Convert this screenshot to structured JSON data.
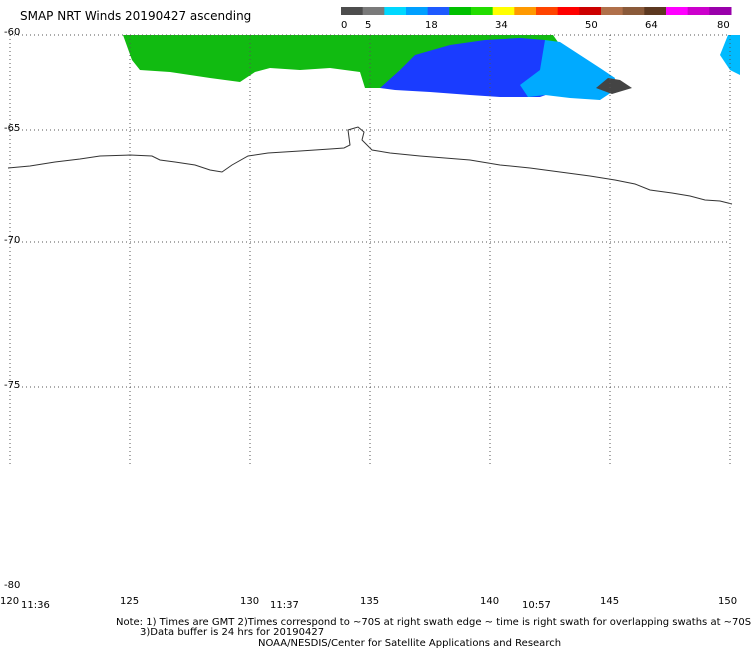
{
  "title": "SMAP NRT Winds 20190427 ascending",
  "colorbar": {
    "labels": [
      "0",
      "5",
      "18",
      "34",
      "50",
      "64",
      "80"
    ],
    "segments": [
      "#4d4d4d",
      "#7a7a7a",
      "#00d8ff",
      "#00a0ff",
      "#1e5aff",
      "#00c000",
      "#22dd00",
      "#ffff00",
      "#ff9900",
      "#ff4400",
      "#ff0000",
      "#cc0000",
      "#b0704a",
      "#8a5a3a",
      "#5c3820",
      "#ff00ff",
      "#cc00cc",
      "#9900aa"
    ]
  },
  "latitude_labels": [
    "-60",
    "-65",
    "-70",
    "-75",
    "-80"
  ],
  "longitude_labels": [
    "120",
    "125",
    "130",
    "135",
    "140",
    "145",
    "150"
  ],
  "swath_times": [
    "11:36",
    "11:37",
    "10:57"
  ],
  "notes": {
    "line1": "Note: 1) Times are GMT 2)Times correspond to ~70S at right swath edge ~ time is right swath for overlapping swaths at ~70S",
    "line2": "3)Data buffer is 24 hrs for 20190427",
    "line3": "NOAA/NESDIS/Center for Satellite Applications and Research"
  },
  "colors": {
    "grid": "#555555",
    "coastline": "#333333",
    "wind_green": "#11bb11",
    "wind_blue_dark": "#1a2eff",
    "wind_blue_light": "#00bbff",
    "wind_gray": "#444444"
  }
}
